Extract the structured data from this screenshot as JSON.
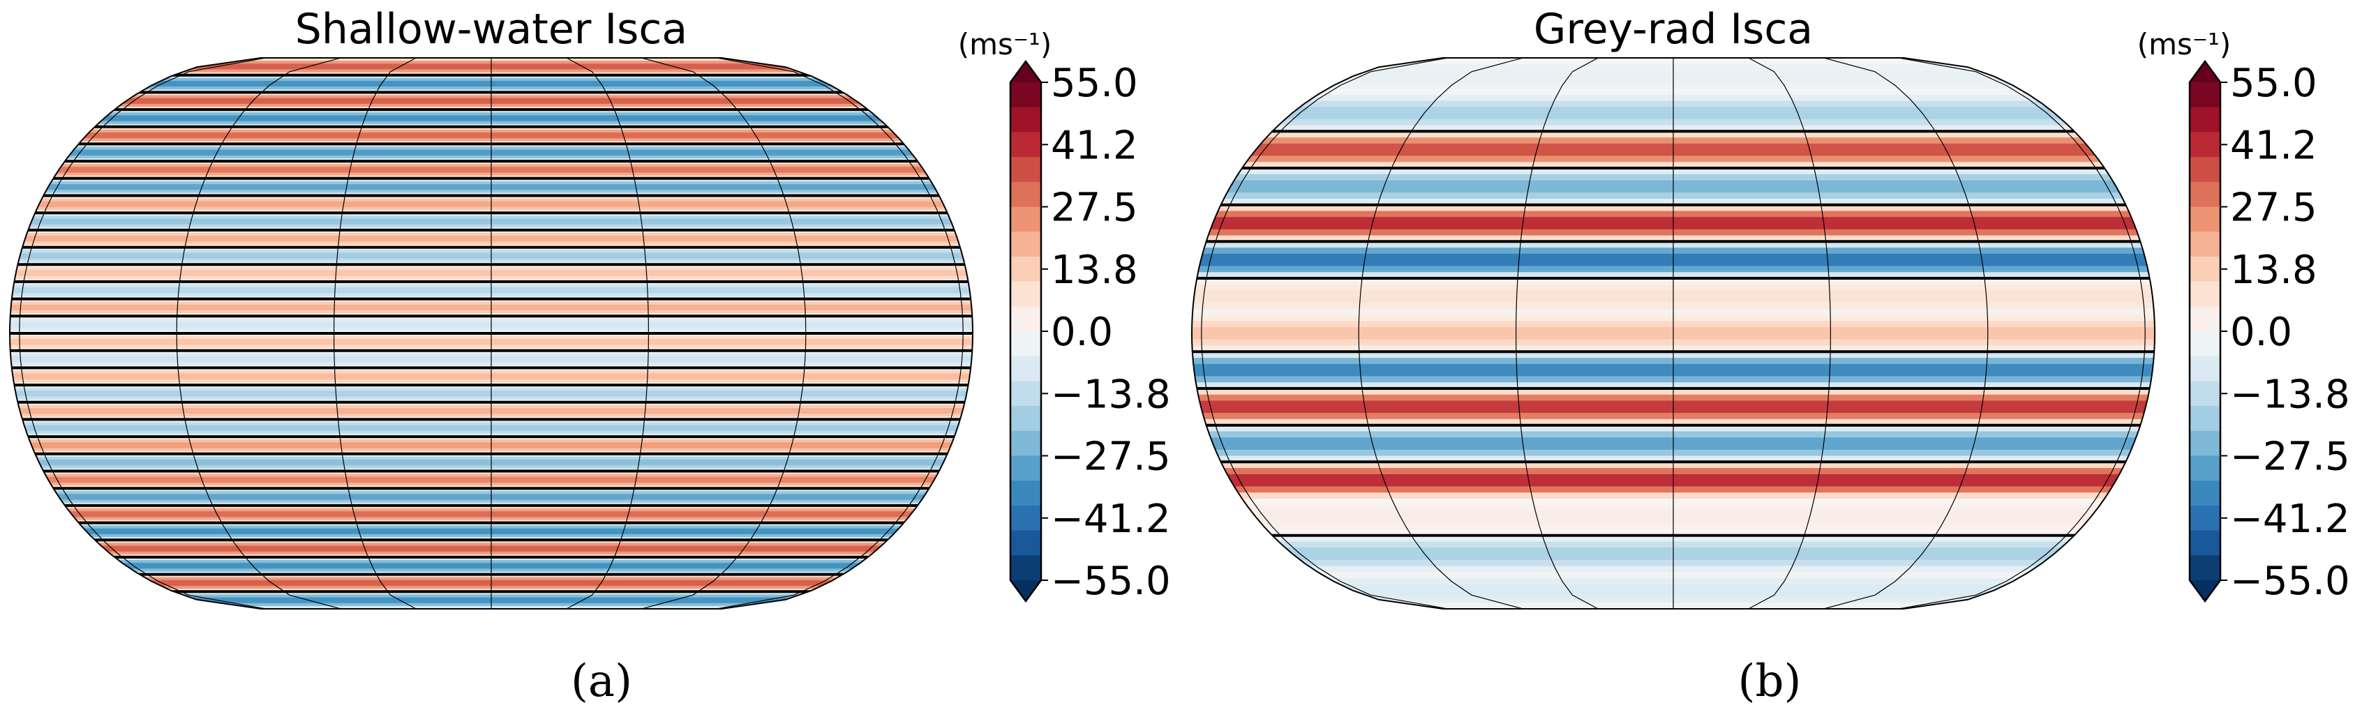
{
  "chart_data": [
    {
      "type": "heatmap",
      "panel_label": "(a)",
      "title": "Shallow-water Isca",
      "projection": "Robinson (global map)",
      "variable_note": "zonal wind, banded jets, black contour = 0",
      "colorbar": {
        "unit_label": "(ms⁻¹)",
        "ticks": [
          "55.0",
          "41.2",
          "27.5",
          "13.8",
          "0.0",
          "−13.8",
          "−27.5",
          "−41.2",
          "−55.0"
        ],
        "range": [
          -55.0,
          55.0
        ],
        "levels": 20,
        "extend": "both"
      },
      "bands_north_to_south": [
        34,
        -34,
        34,
        -34,
        32,
        -32,
        30,
        -30,
        22,
        -22,
        20,
        -20,
        16,
        -16,
        20,
        -10,
        16,
        -12,
        18,
        -18,
        20,
        -20,
        24,
        -24,
        28,
        -30,
        32,
        -34,
        34,
        -34,
        34,
        -34
      ]
    },
    {
      "type": "heatmap",
      "panel_label": "(b)",
      "title": "Grey-rad Isca",
      "projection": "Robinson (global map)",
      "variable_note": "zonal wind, broad jets, black contour = 0",
      "colorbar": {
        "unit_label": "(ms⁻¹)",
        "ticks": [
          "55.0",
          "41.2",
          "27.5",
          "13.8",
          "0.0",
          "−13.8",
          "−27.5",
          "−41.2",
          "−55.0"
        ],
        "range": [
          -55.0,
          55.0
        ],
        "levels": 20,
        "extend": "both"
      },
      "bands_north_to_south": [
        -4,
        -18,
        36,
        -26,
        42,
        -40,
        8,
        16,
        -36,
        40,
        -30,
        42,
        4,
        -18,
        -8
      ]
    }
  ],
  "colors": {
    "cmap_RdBu_r": [
      "#053061",
      "#2166ac",
      "#4393c3",
      "#92c5de",
      "#d1e5f0",
      "#f7f7f7",
      "#fddbc7",
      "#f4a582",
      "#d6604d",
      "#b2182b",
      "#67001f"
    ],
    "contour": "#000000",
    "gridline": "#000000"
  }
}
